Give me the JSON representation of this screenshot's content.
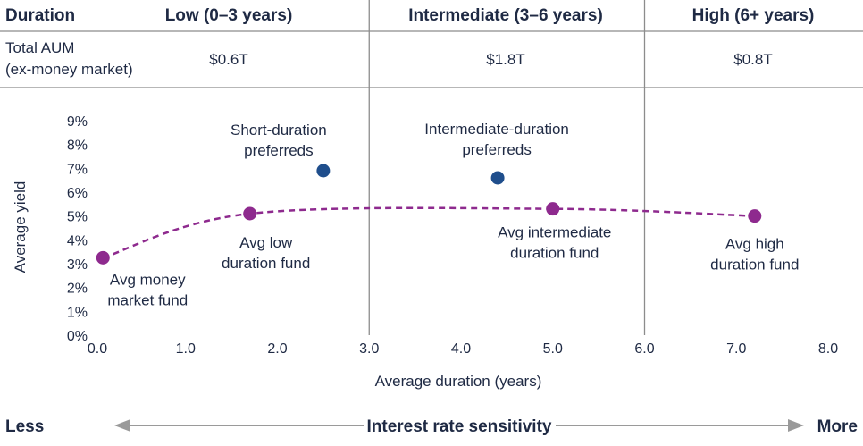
{
  "header": {
    "duration_label": "Duration",
    "low_label": "Low (0–3 years)",
    "intermediate_label": "Intermediate (3–6 years)",
    "high_label": "High (6+ years)"
  },
  "aum_row": {
    "label_line1": "Total AUM",
    "label_line2": "(ex-money market)",
    "low_value": "$0.6T",
    "intermediate_value": "$1.8T",
    "high_value": "$0.8T"
  },
  "sensitivity": {
    "left_label": "Less",
    "center_label": "Interest rate sensitivity",
    "right_label": "More"
  },
  "colors": {
    "text": "#1f2a44",
    "grid": "#8c8c8c",
    "fund_purple": "#8e2a8e",
    "preferred_blue": "#1f4e8c",
    "arrow_gray": "#9a9a9a"
  },
  "chart_data": {
    "type": "scatter",
    "xlabel": "Average duration (years)",
    "ylabel": "Average yield",
    "xlim": [
      0,
      8
    ],
    "ylim": [
      0,
      9
    ],
    "x_ticks": [
      "0.0",
      "1.0",
      "2.0",
      "3.0",
      "4.0",
      "5.0",
      "6.0",
      "7.0",
      "8.0"
    ],
    "y_ticks": [
      "0%",
      "1%",
      "2%",
      "3%",
      "4%",
      "5%",
      "6%",
      "7%",
      "8%",
      "9%"
    ],
    "vertical_dividers_x": [
      3,
      6
    ],
    "series": [
      {
        "name": "",
        "color": "#8e2a8e",
        "line": "dashed",
        "points": [
          {
            "x": 0.1,
            "y": 3.25,
            "label": [
              "Avg money",
              "market fund"
            ]
          },
          {
            "x": 1.7,
            "y": 5.1,
            "label": [
              "Avg low",
              "duration fund"
            ]
          },
          {
            "x": 5.0,
            "y": 5.3,
            "label": [
              "Avg intermediate",
              "duration fund"
            ]
          },
          {
            "x": 7.2,
            "y": 5.0,
            "label": [
              "Avg high",
              "duration fund"
            ]
          }
        ]
      },
      {
        "name": "",
        "color": "#1f4e8c",
        "line": "none",
        "points": [
          {
            "x": 2.5,
            "y": 6.9,
            "label": [
              "Short-duration",
              "preferreds"
            ]
          },
          {
            "x": 4.4,
            "y": 6.6,
            "label": [
              "Intermediate-duration",
              "preferreds"
            ]
          }
        ]
      }
    ]
  }
}
